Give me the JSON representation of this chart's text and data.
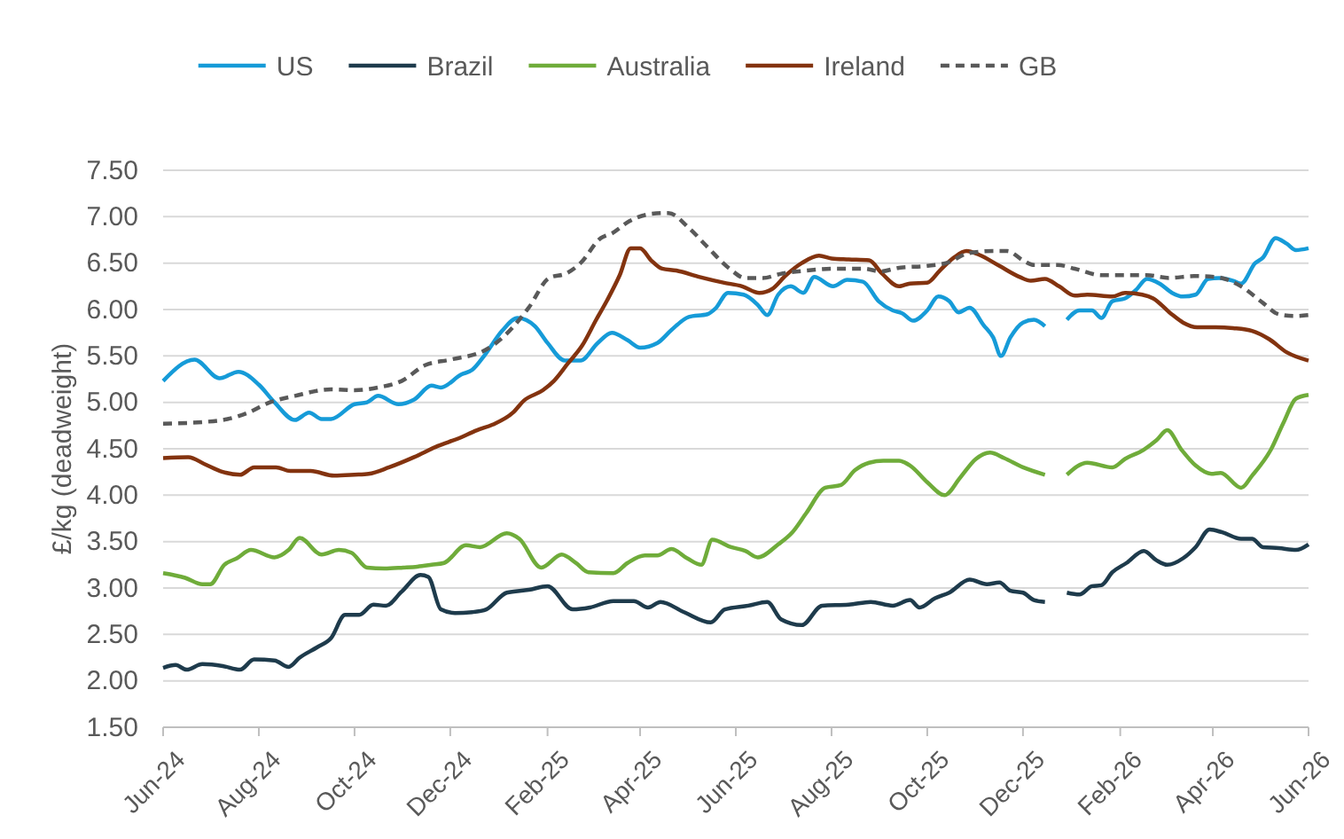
{
  "chart_data": {
    "type": "line",
    "ylabel": "£/kg (deadweight)",
    "legend": "top",
    "grid": "y",
    "xlim": [
      "2024-06-01",
      "2026-06-01"
    ],
    "xticks": [
      {
        "value": "2024-06-01",
        "label": "Jun-24"
      },
      {
        "value": "2024-08-01",
        "label": "Aug-24"
      },
      {
        "value": "2024-10-01",
        "label": "Oct-24"
      },
      {
        "value": "2024-12-01",
        "label": "Dec-24"
      },
      {
        "value": "2025-02-01",
        "label": "Feb-25"
      },
      {
        "value": "2025-04-01",
        "label": "Apr-25"
      },
      {
        "value": "2025-06-01",
        "label": "Jun-25"
      },
      {
        "value": "2025-08-01",
        "label": "Aug-25"
      },
      {
        "value": "2025-10-01",
        "label": "Oct-25"
      },
      {
        "value": "2025-12-01",
        "label": "Dec-25"
      },
      {
        "value": "2026-02-01",
        "label": "Feb-26"
      },
      {
        "value": "2026-04-01",
        "label": "Apr-26"
      },
      {
        "value": "2026-06-01",
        "label": "Jun-26"
      }
    ],
    "ylim": [
      1.5,
      7.5
    ],
    "yticks": [
      {
        "value": 1.5,
        "label": "1.50"
      },
      {
        "value": 2,
        "label": "2.00"
      },
      {
        "value": 2.5,
        "label": "2.50"
      },
      {
        "value": 3,
        "label": "3.00"
      },
      {
        "value": 3.5,
        "label": "3.50"
      },
      {
        "value": 4,
        "label": "4.00"
      },
      {
        "value": 4.5,
        "label": "4.50"
      },
      {
        "value": 5,
        "label": "5.00"
      },
      {
        "value": 5.5,
        "label": "5.50"
      },
      {
        "value": 6,
        "label": "6.00"
      },
      {
        "value": 6.5,
        "label": "6.50"
      },
      {
        "value": 7,
        "label": "7.00"
      },
      {
        "value": 7.5,
        "label": "7.50"
      }
    ],
    "series": [
      {
        "name": "US",
        "color": "#169bd8",
        "line_style": "solid",
        "x": [
          "2024-06-01",
          "2024-06-21",
          "2024-07-07",
          "2024-07-19",
          "2024-08-01",
          "2024-08-11",
          "2024-08-24",
          "2024-09-02",
          "2024-09-10",
          "2024-09-16",
          "2024-10-01",
          "2024-10-09",
          "2024-10-16",
          "2024-10-29",
          "2024-11-08",
          "2024-11-19",
          "2024-11-25",
          "2024-12-08",
          "2024-12-15",
          "2024-12-23",
          "2025-01-03",
          "2025-01-13",
          "2025-01-24",
          "2025-02-01",
          "2025-02-12",
          "2025-02-22",
          "2025-03-05",
          "2025-03-14",
          "2025-03-24",
          "2025-04-01",
          "2025-04-12",
          "2025-04-21",
          "2025-05-02",
          "2025-05-14",
          "2025-05-19",
          "2025-05-27",
          "2025-06-06",
          "2025-06-15",
          "2025-06-21",
          "2025-06-28",
          "2025-07-06",
          "2025-07-14",
          "2025-07-21",
          "2025-08-02",
          "2025-08-11",
          "2025-08-21",
          "2025-08-31",
          "2025-09-09",
          "2025-09-15",
          "2025-09-22",
          "2025-10-01",
          "2025-10-08",
          "2025-10-15",
          "2025-10-21",
          "2025-10-28",
          "2025-11-06",
          "2025-11-12",
          "2025-11-17",
          "2025-11-23",
          "2025-12-01",
          "2025-12-08",
          "2025-12-15",
          "2025-12-22",
          "2025-12-29",
          "2026-01-06",
          "2026-01-14",
          "2026-01-20",
          "2026-01-27",
          "2026-02-04",
          "2026-02-11",
          "2026-02-18",
          "2026-02-26",
          "2026-03-06",
          "2026-03-13",
          "2026-03-21",
          "2026-03-29",
          "2026-04-05",
          "2026-04-14",
          "2026-04-19",
          "2026-04-28",
          "2026-05-03",
          "2026-05-11",
          "2026-05-18",
          "2026-05-24",
          "2026-06-01"
        ],
        "values": [
          5.23,
          5.46,
          5.26,
          5.33,
          5.19,
          5.0,
          4.81,
          4.89,
          4.82,
          4.82,
          4.98,
          5.0,
          5.07,
          4.98,
          5.03,
          5.18,
          5.16,
          5.3,
          5.35,
          5.51,
          5.77,
          5.91,
          5.82,
          5.64,
          5.45,
          5.45,
          5.64,
          5.75,
          5.67,
          5.59,
          5.64,
          5.78,
          5.92,
          5.95,
          6.01,
          6.18,
          6.16,
          6.05,
          5.94,
          6.16,
          6.25,
          6.18,
          6.35,
          6.25,
          6.32,
          6.3,
          6.09,
          5.99,
          5.96,
          5.88,
          5.99,
          6.14,
          6.09,
          5.97,
          6.02,
          5.83,
          5.7,
          5.5,
          5.7,
          5.86,
          5.89,
          5.82,
          null,
          5.89,
          5.99,
          5.99,
          5.91,
          6.09,
          6.12,
          6.21,
          6.33,
          6.28,
          6.18,
          6.14,
          6.16,
          6.33,
          6.34,
          6.31,
          6.28,
          6.5,
          6.56,
          6.77,
          6.71,
          6.64,
          6.66
        ]
      },
      {
        "name": "Brazil",
        "color": "#1e3b4c",
        "line_style": "solid",
        "x": [
          "2024-06-01",
          "2024-06-09",
          "2024-06-16",
          "2024-06-26",
          "2024-07-09",
          "2024-07-20",
          "2024-07-29",
          "2024-08-11",
          "2024-08-20",
          "2024-08-27",
          "2024-09-07",
          "2024-09-16",
          "2024-09-25",
          "2024-10-04",
          "2024-10-13",
          "2024-10-21",
          "2024-10-31",
          "2024-11-12",
          "2024-11-17",
          "2024-11-25",
          "2024-12-04",
          "2024-12-15",
          "2024-12-24",
          "2025-01-06",
          "2025-01-20",
          "2025-02-01",
          "2025-02-17",
          "2025-02-28",
          "2025-03-15",
          "2025-03-28",
          "2025-04-06",
          "2025-04-14",
          "2025-04-29",
          "2025-05-16",
          "2025-05-25",
          "2025-06-09",
          "2025-06-21",
          "2025-06-30",
          "2025-07-13",
          "2025-07-26",
          "2025-08-12",
          "2025-08-26",
          "2025-09-09",
          "2025-09-20",
          "2025-09-26",
          "2025-10-06",
          "2025-10-15",
          "2025-10-28",
          "2025-11-08",
          "2025-11-16",
          "2025-11-23",
          "2025-12-01",
          "2025-12-08",
          "2025-12-15",
          "2025-12-22",
          "2025-12-29",
          "2026-01-06",
          "2026-01-14",
          "2026-01-20",
          "2026-01-27",
          "2026-02-05",
          "2026-02-16",
          "2026-02-24",
          "2026-03-03",
          "2026-03-13",
          "2026-03-21",
          "2026-03-30",
          "2026-04-07",
          "2026-04-19",
          "2026-04-26",
          "2026-05-03",
          "2026-05-13",
          "2026-05-24",
          "2026-06-01"
        ],
        "values": [
          2.14,
          2.17,
          2.12,
          2.18,
          2.16,
          2.12,
          2.23,
          2.22,
          2.15,
          2.25,
          2.36,
          2.46,
          2.71,
          2.71,
          2.82,
          2.81,
          2.96,
          3.14,
          3.12,
          2.77,
          2.73,
          2.74,
          2.77,
          2.95,
          2.98,
          3.02,
          2.77,
          2.79,
          2.86,
          2.86,
          2.79,
          2.85,
          2.74,
          2.63,
          2.77,
          2.81,
          2.85,
          2.66,
          2.6,
          2.81,
          2.82,
          2.85,
          2.81,
          2.87,
          2.79,
          2.89,
          2.95,
          3.09,
          3.04,
          3.06,
          2.97,
          2.95,
          2.87,
          2.85,
          null,
          2.95,
          2.93,
          3.02,
          3.03,
          3.17,
          3.27,
          3.4,
          3.3,
          3.25,
          3.32,
          3.44,
          3.63,
          3.6,
          3.53,
          3.53,
          3.44,
          3.43,
          3.41,
          3.47
        ]
      },
      {
        "name": "Australia",
        "color": "#6fac3a",
        "line_style": "solid",
        "x": [
          "2024-06-01",
          "2024-06-15",
          "2024-06-26",
          "2024-07-01",
          "2024-07-10",
          "2024-07-18",
          "2024-07-27",
          "2024-08-11",
          "2024-08-20",
          "2024-08-27",
          "2024-09-10",
          "2024-09-21",
          "2024-09-29",
          "2024-10-09",
          "2024-10-20",
          "2024-11-01",
          "2024-11-10",
          "2024-11-19",
          "2024-11-27",
          "2024-12-11",
          "2024-12-20",
          "2025-01-06",
          "2025-01-14",
          "2025-01-28",
          "2025-02-10",
          "2025-02-19",
          "2025-02-27",
          "2025-03-15",
          "2025-03-24",
          "2025-04-04",
          "2025-04-12",
          "2025-04-21",
          "2025-05-01",
          "2025-05-10",
          "2025-05-17",
          "2025-05-29",
          "2025-06-07",
          "2025-06-15",
          "2025-06-28",
          "2025-07-07",
          "2025-07-16",
          "2025-07-28",
          "2025-08-07",
          "2025-08-16",
          "2025-08-25",
          "2025-09-03",
          "2025-09-13",
          "2025-09-20",
          "2025-10-01",
          "2025-10-12",
          "2025-10-22",
          "2025-11-01",
          "2025-11-10",
          "2025-11-19",
          "2025-12-01",
          "2025-12-15",
          "2025-12-22",
          "2025-12-29",
          "2026-01-11",
          "2026-01-27",
          "2026-02-04",
          "2026-02-16",
          "2026-02-24",
          "2026-03-03",
          "2026-03-12",
          "2026-03-21",
          "2026-03-31",
          "2026-04-06",
          "2026-04-19",
          "2026-04-26",
          "2026-05-08",
          "2026-05-16",
          "2026-05-24",
          "2026-06-01"
        ],
        "values": [
          3.16,
          3.11,
          3.04,
          3.04,
          3.25,
          3.32,
          3.41,
          3.33,
          3.41,
          3.54,
          3.36,
          3.41,
          3.38,
          3.22,
          3.21,
          3.22,
          3.23,
          3.25,
          3.27,
          3.46,
          3.44,
          3.59,
          3.53,
          3.22,
          3.36,
          3.27,
          3.17,
          3.16,
          3.27,
          3.35,
          3.35,
          3.42,
          3.32,
          3.25,
          3.52,
          3.44,
          3.4,
          3.33,
          3.47,
          3.6,
          3.81,
          4.08,
          4.11,
          4.27,
          4.35,
          4.37,
          4.37,
          4.32,
          4.14,
          4.0,
          4.19,
          4.39,
          4.46,
          4.4,
          4.3,
          4.22,
          null,
          4.22,
          4.35,
          4.3,
          4.39,
          4.49,
          4.59,
          4.7,
          4.49,
          4.32,
          4.23,
          4.24,
          4.08,
          4.21,
          4.49,
          4.78,
          5.04,
          5.08
        ]
      },
      {
        "name": "Ireland",
        "color": "#83330f",
        "line_style": "solid",
        "x": [
          "2024-06-01",
          "2024-06-17",
          "2024-06-28",
          "2024-07-09",
          "2024-07-20",
          "2024-07-29",
          "2024-08-12",
          "2024-08-21",
          "2024-09-03",
          "2024-09-18",
          "2024-10-01",
          "2024-10-10",
          "2024-10-23",
          "2024-11-08",
          "2024-11-23",
          "2024-12-06",
          "2024-12-18",
          "2024-12-28",
          "2025-01-10",
          "2025-01-17",
          "2025-01-29",
          "2025-02-05",
          "2025-02-14",
          "2025-02-23",
          "2025-03-04",
          "2025-03-11",
          "2025-03-19",
          "2025-03-26",
          "2025-04-01",
          "2025-04-08",
          "2025-04-15",
          "2025-04-24",
          "2025-05-09",
          "2025-05-24",
          "2025-06-05",
          "2025-06-16",
          "2025-06-24",
          "2025-07-03",
          "2025-07-13",
          "2025-07-24",
          "2025-08-01",
          "2025-08-12",
          "2025-08-25",
          "2025-09-02",
          "2025-09-13",
          "2025-09-20",
          "2025-10-01",
          "2025-10-09",
          "2025-10-18",
          "2025-10-26",
          "2025-11-03",
          "2025-11-16",
          "2025-11-29",
          "2025-12-06",
          "2025-12-15",
          "2025-12-24",
          "2026-01-03",
          "2026-01-11",
          "2026-01-27",
          "2026-02-04",
          "2026-02-15",
          "2026-02-22",
          "2026-03-05",
          "2026-03-13",
          "2026-03-22",
          "2026-04-03",
          "2026-04-14",
          "2026-04-26",
          "2026-05-07",
          "2026-05-18",
          "2026-06-01"
        ],
        "values": [
          4.4,
          4.41,
          4.33,
          4.25,
          4.22,
          4.3,
          4.3,
          4.26,
          4.26,
          4.21,
          4.22,
          4.23,
          4.3,
          4.41,
          4.53,
          4.61,
          4.7,
          4.76,
          4.89,
          5.02,
          5.13,
          5.23,
          5.42,
          5.61,
          5.89,
          6.1,
          6.37,
          6.66,
          6.66,
          6.53,
          6.44,
          6.42,
          6.35,
          6.29,
          6.25,
          6.18,
          6.22,
          6.37,
          6.5,
          6.58,
          6.55,
          6.54,
          6.53,
          6.39,
          6.25,
          6.28,
          6.29,
          6.42,
          6.56,
          6.63,
          6.59,
          6.47,
          6.35,
          6.31,
          6.33,
          6.25,
          6.15,
          6.16,
          6.14,
          6.18,
          6.16,
          6.12,
          5.96,
          5.86,
          5.81,
          5.81,
          5.8,
          5.77,
          5.68,
          5.54,
          5.45
        ]
      },
      {
        "name": "GB",
        "color": "#595959",
        "line_style": "dashed",
        "x": [
          "2024-06-01",
          "2024-06-28",
          "2024-07-12",
          "2024-07-24",
          "2024-08-08",
          "2024-08-24",
          "2024-09-16",
          "2024-10-01",
          "2024-10-16",
          "2024-10-31",
          "2024-11-15",
          "2024-12-01",
          "2024-12-23",
          "2025-01-06",
          "2025-01-20",
          "2025-02-02",
          "2025-02-13",
          "2025-02-22",
          "2025-03-07",
          "2025-03-14",
          "2025-03-25",
          "2025-04-08",
          "2025-04-19",
          "2025-05-02",
          "2025-05-13",
          "2025-05-28",
          "2025-06-07",
          "2025-06-18",
          "2025-07-01",
          "2025-07-16",
          "2025-08-04",
          "2025-08-22",
          "2025-09-01",
          "2025-09-13",
          "2025-10-01",
          "2025-10-13",
          "2025-10-28",
          "2025-11-12",
          "2025-11-21",
          "2025-12-01",
          "2025-12-08",
          "2025-12-23",
          "2026-01-03",
          "2026-01-20",
          "2026-02-04",
          "2026-02-18",
          "2026-03-04",
          "2026-03-20",
          "2026-04-03",
          "2026-04-19",
          "2026-05-03",
          "2026-05-13",
          "2026-05-23",
          "2026-06-01"
        ],
        "values": [
          4.77,
          4.79,
          4.82,
          4.88,
          5.0,
          5.07,
          5.14,
          5.13,
          5.16,
          5.23,
          5.4,
          5.46,
          5.56,
          5.74,
          6.02,
          6.34,
          6.39,
          6.5,
          6.77,
          6.82,
          6.95,
          7.03,
          7.04,
          6.88,
          6.69,
          6.44,
          6.34,
          6.34,
          6.39,
          6.42,
          6.44,
          6.44,
          6.41,
          6.45,
          6.47,
          6.5,
          6.61,
          6.63,
          6.63,
          6.53,
          6.48,
          6.48,
          6.44,
          6.37,
          6.37,
          6.37,
          6.34,
          6.36,
          6.35,
          6.25,
          6.07,
          5.95,
          5.93,
          5.94
        ]
      }
    ]
  }
}
